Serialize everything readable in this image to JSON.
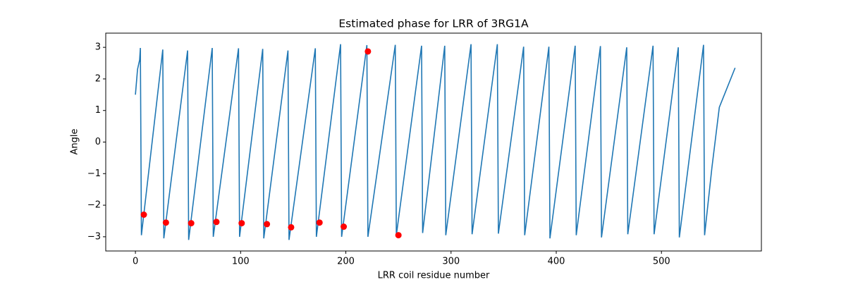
{
  "chart_data": {
    "type": "line",
    "title": "Estimated phase for LRR of 3RG1A",
    "x_label": "LRR coil residue number",
    "y_label": "Angle",
    "xlim": [
      -28.2,
      595
    ],
    "ylim": [
      -3.45,
      3.45
    ],
    "xticks": [
      0,
      100,
      200,
      300,
      400,
      500
    ],
    "yticks": [
      {
        "value": -3,
        "label": "−3"
      },
      {
        "value": -2,
        "label": "−2"
      },
      {
        "value": -1,
        "label": "−1"
      },
      0,
      1,
      2,
      3
    ],
    "series": [
      {
        "type": "line",
        "color": "#1f77b4",
        "x": [
          0,
          2,
          4,
          4.7,
          5.7,
          26,
          27,
          49.6,
          50.6,
          73,
          74,
          98,
          99,
          121,
          122,
          145,
          146,
          171,
          172,
          195,
          196,
          220,
          221,
          247,
          248,
          272,
          273,
          294,
          295,
          319,
          320,
          344,
          345,
          369,
          370,
          393,
          394,
          418,
          419,
          442,
          443,
          467,
          468,
          492,
          493,
          516,
          517,
          540,
          541,
          548,
          555,
          570
        ],
        "values": [
          1.5,
          2.3,
          2.6,
          2.98,
          -2.95,
          2.93,
          -3.05,
          2.9,
          -3.1,
          2.98,
          -3.0,
          2.97,
          -3.0,
          2.95,
          -3.05,
          2.9,
          -3.1,
          2.97,
          -3.0,
          3.1,
          -3.0,
          3.07,
          -3.0,
          3.08,
          -2.95,
          3.05,
          -2.88,
          3.05,
          -2.95,
          3.1,
          -2.92,
          3.1,
          -2.9,
          3.02,
          -2.95,
          3.02,
          -3.05,
          3.05,
          -2.95,
          3.04,
          -3.02,
          3.0,
          -2.92,
          3.05,
          -2.92,
          3.0,
          -3.02,
          3.08,
          -2.95,
          -0.8,
          1.1,
          2.35
        ]
      },
      {
        "type": "scatter",
        "color": "#ff0000",
        "x": [
          8,
          29,
          53,
          77,
          101,
          125,
          148,
          175,
          198,
          221,
          250
        ],
        "values": [
          -2.3,
          -2.55,
          -2.57,
          -2.53,
          -2.57,
          -2.6,
          -2.7,
          -2.55,
          -2.68,
          2.87,
          -2.95
        ]
      }
    ]
  }
}
